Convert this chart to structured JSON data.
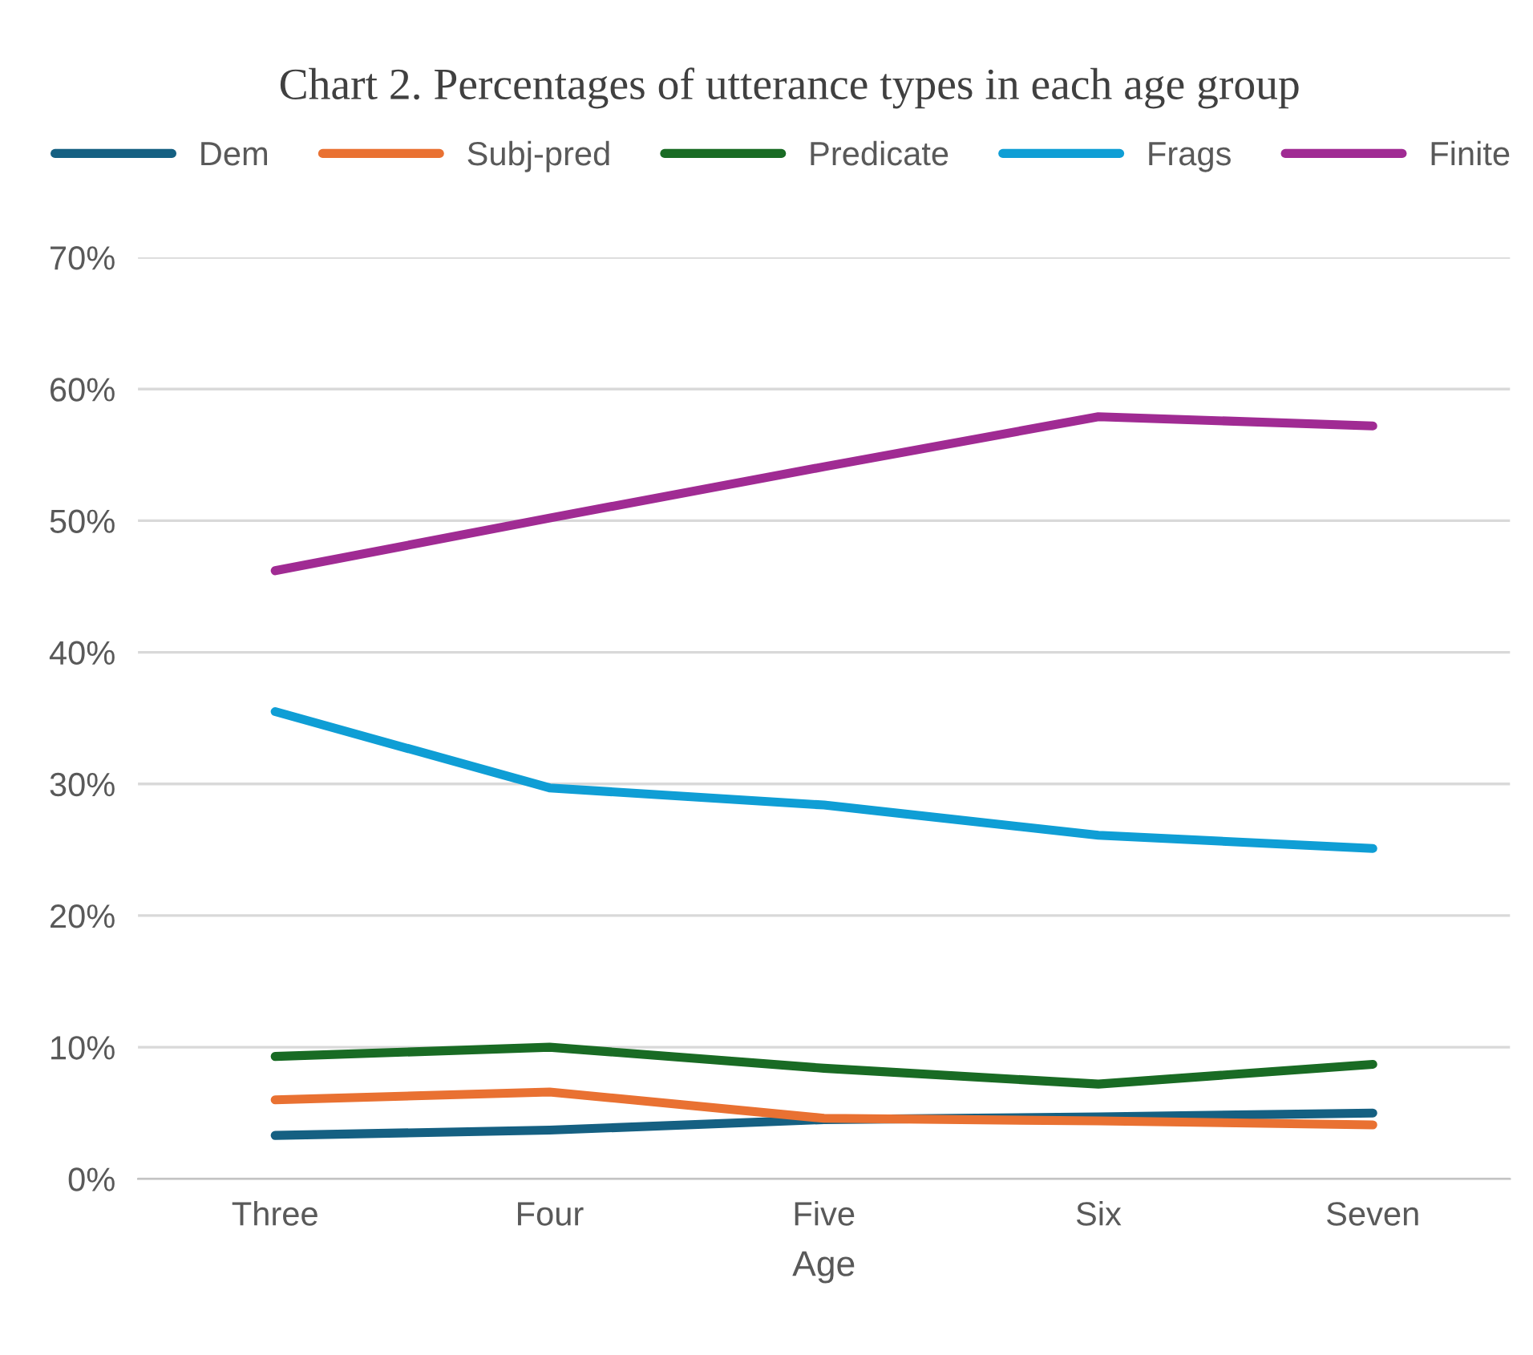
{
  "chart_data": {
    "type": "line",
    "title": "Chart 2. Percentages of utterance types in each age group",
    "xlabel": "Age",
    "categories": [
      "Three",
      "Four",
      "Five",
      "Six",
      "Seven"
    ],
    "series": [
      {
        "name": "Dem",
        "color": "#156082",
        "values": [
          3.3,
          3.7,
          4.5,
          4.7,
          5.0
        ]
      },
      {
        "name": "Subj-pred",
        "color": "#e97132",
        "values": [
          6.0,
          6.6,
          4.6,
          4.4,
          4.1
        ]
      },
      {
        "name": "Predicate",
        "color": "#196b24",
        "values": [
          9.3,
          10.0,
          8.4,
          7.2,
          8.7
        ]
      },
      {
        "name": "Frags",
        "color": "#0f9ed5",
        "values": [
          35.5,
          29.7,
          28.4,
          26.1,
          25.1
        ]
      },
      {
        "name": "Finite",
        "color": "#a02b93",
        "values": [
          46.2,
          50.2,
          54.1,
          57.9,
          57.2
        ]
      }
    ],
    "ylim": [
      0,
      70
    ],
    "yticks": [
      {
        "value": 0,
        "label": "0%"
      },
      {
        "value": 10,
        "label": "10%"
      },
      {
        "value": 20,
        "label": "20%"
      },
      {
        "value": 30,
        "label": "30%"
      },
      {
        "value": 40,
        "label": "40%"
      },
      {
        "value": 50,
        "label": "50%"
      },
      {
        "value": 60,
        "label": "60%"
      },
      {
        "value": 70,
        "label": "70%"
      }
    ],
    "grid": "y",
    "legend": "top",
    "marker": "none",
    "line_style": "solid"
  }
}
